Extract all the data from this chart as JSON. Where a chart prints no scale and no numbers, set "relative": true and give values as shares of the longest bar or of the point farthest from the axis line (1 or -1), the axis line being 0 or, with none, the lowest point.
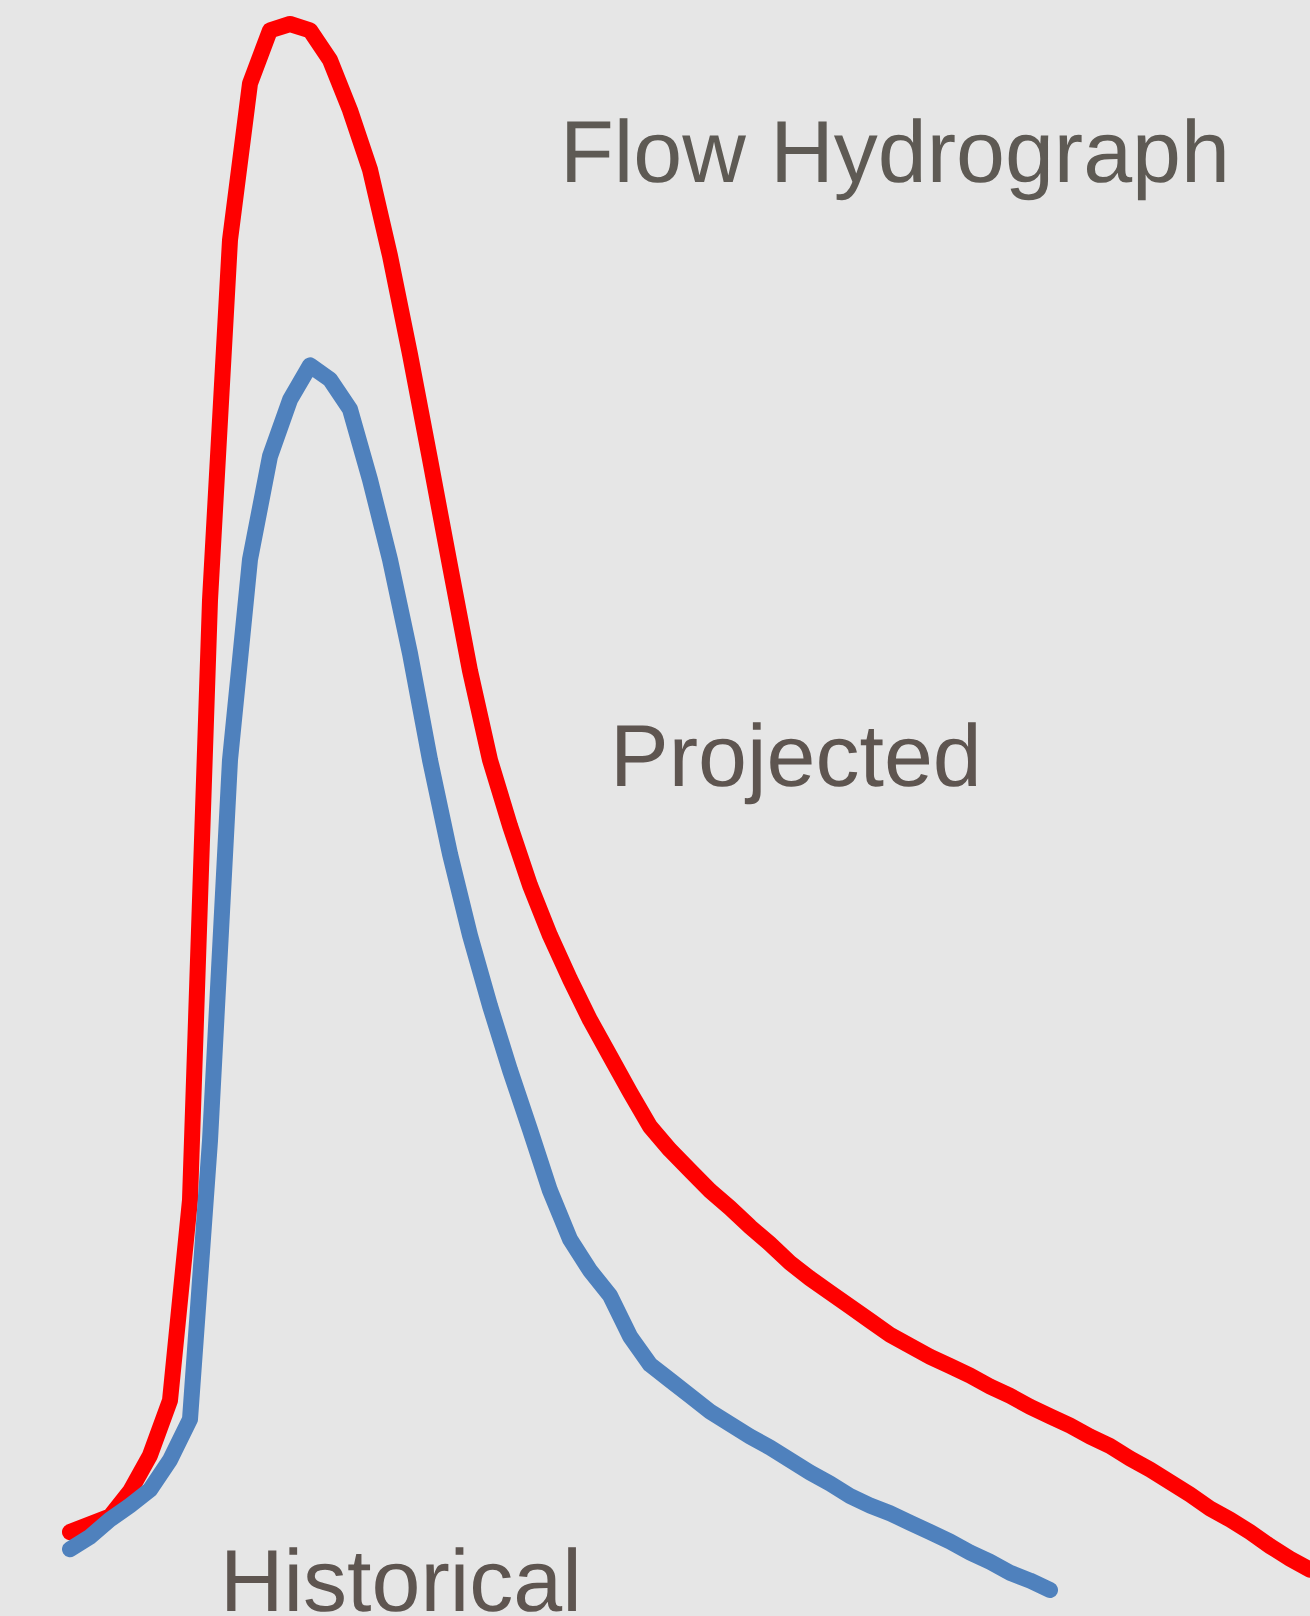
{
  "chart_data": {
    "type": "line",
    "title": "Flow Hydrograph",
    "relative": true,
    "legend": false,
    "marker": "none",
    "line_style": "solid",
    "categories": [
      null,
      null,
      null,
      null,
      null,
      null,
      null,
      null,
      null,
      null,
      null,
      null,
      null,
      null,
      null,
      null,
      null,
      null,
      null,
      null,
      null,
      null,
      null,
      null,
      null,
      null,
      null,
      null,
      null,
      null,
      null,
      null,
      null,
      null,
      null,
      null,
      null,
      null,
      null,
      null,
      null,
      null,
      null,
      null,
      null,
      null,
      null,
      null,
      null,
      null,
      null,
      null,
      null,
      null,
      null,
      null,
      null,
      null,
      null,
      null,
      null,
      null,
      null
    ],
    "series": [
      {
        "name": "Projected",
        "color": "#ff0000",
        "values": [
          0.037,
          0.042,
          0.047,
          0.063,
          0.086,
          0.121,
          0.249,
          0.632,
          0.862,
          0.962,
          0.996,
          1,
          0.996,
          0.977,
          0.945,
          0.907,
          0.852,
          0.789,
          0.722,
          0.654,
          0.587,
          0.53,
          0.488,
          0.45,
          0.418,
          0.39,
          0.364,
          0.341,
          0.318,
          0.296,
          0.281,
          0.268,
          0.255,
          0.244,
          0.232,
          0.221,
          0.209,
          0.199,
          0.19,
          0.181,
          0.172,
          0.163,
          0.156,
          0.149,
          0.143,
          0.137,
          0.13,
          0.124,
          0.117,
          0.111,
          0.105,
          0.098,
          0.092,
          0.084,
          0.077,
          0.069,
          0.061,
          0.052,
          0.045,
          0.037,
          0.028,
          0.02,
          0.013
        ]
      },
      {
        "name": "Historical",
        "color": "#4f81bd",
        "values": [
          0.026,
          0.034,
          0.045,
          0.054,
          0.064,
          0.083,
          0.109,
          0.287,
          0.53,
          0.658,
          0.724,
          0.76,
          0.782,
          0.773,
          0.754,
          0.709,
          0.658,
          0.598,
          0.53,
          0.47,
          0.418,
          0.373,
          0.332,
          0.294,
          0.255,
          0.224,
          0.204,
          0.188,
          0.162,
          0.144,
          0.134,
          0.124,
          0.114,
          0.106,
          0.098,
          0.091,
          0.083,
          0.075,
          0.068,
          0.06,
          0.054,
          0.049,
          0.043,
          0.037,
          0.031,
          0.024,
          0.018,
          0.011,
          0.006,
          0,
          null,
          null,
          null,
          null,
          null,
          null,
          null,
          null,
          null,
          null,
          null,
          null,
          null
        ]
      }
    ]
  }
}
